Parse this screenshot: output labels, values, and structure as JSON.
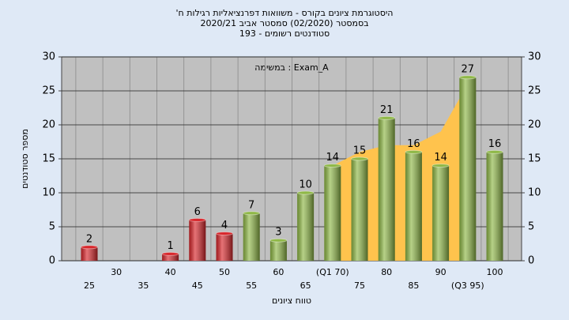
{
  "chart_data": {
    "type": "bar",
    "title_lines": [
      "'היסטוגרמת ציונים בקורס - משוואות דפרנציאליות רגילות ח",
      "בסמסטר  (02/2020)  סמסטר אביב 2020/21",
      "סטודנטים רשומים - 193"
    ],
    "annotation": "במשימה : Exam_A",
    "y_label": "מספר סטודנטים",
    "x_label": "טווח ציונים",
    "categories": [
      "25",
      "30",
      "35",
      "40",
      "45",
      "50",
      "55",
      "60",
      "65",
      "(Q1 70)",
      "75",
      "80",
      "85",
      "90",
      "(Q3 95)",
      "100"
    ],
    "values": [
      2,
      null,
      null,
      1,
      6,
      4,
      7,
      3,
      10,
      14,
      15,
      21,
      16,
      14,
      27,
      16
    ],
    "bar_colors": [
      "#d8262b",
      "#d8262b",
      "#d8262b",
      "#d8262b",
      "#d8262b",
      "#d8262b",
      "#8fb847",
      "#8fb847",
      "#8fb847",
      "#8fb847",
      "#8fb847",
      "#8fb847",
      "#8fb847",
      "#8fb847",
      "#8fb847",
      "#8fb847"
    ],
    "band": {
      "color": "#ffc34d",
      "values": [
        null,
        null,
        null,
        null,
        null,
        null,
        null,
        null,
        null,
        14,
        16,
        17,
        17,
        19,
        26,
        null
      ]
    },
    "ylim": [
      0,
      30
    ],
    "yticks": [
      0,
      5,
      10,
      15,
      20,
      25,
      30
    ],
    "y2lim": [
      0,
      30
    ],
    "y2ticks": [
      0,
      5,
      10,
      15,
      20,
      25,
      30
    ],
    "grid": true
  }
}
